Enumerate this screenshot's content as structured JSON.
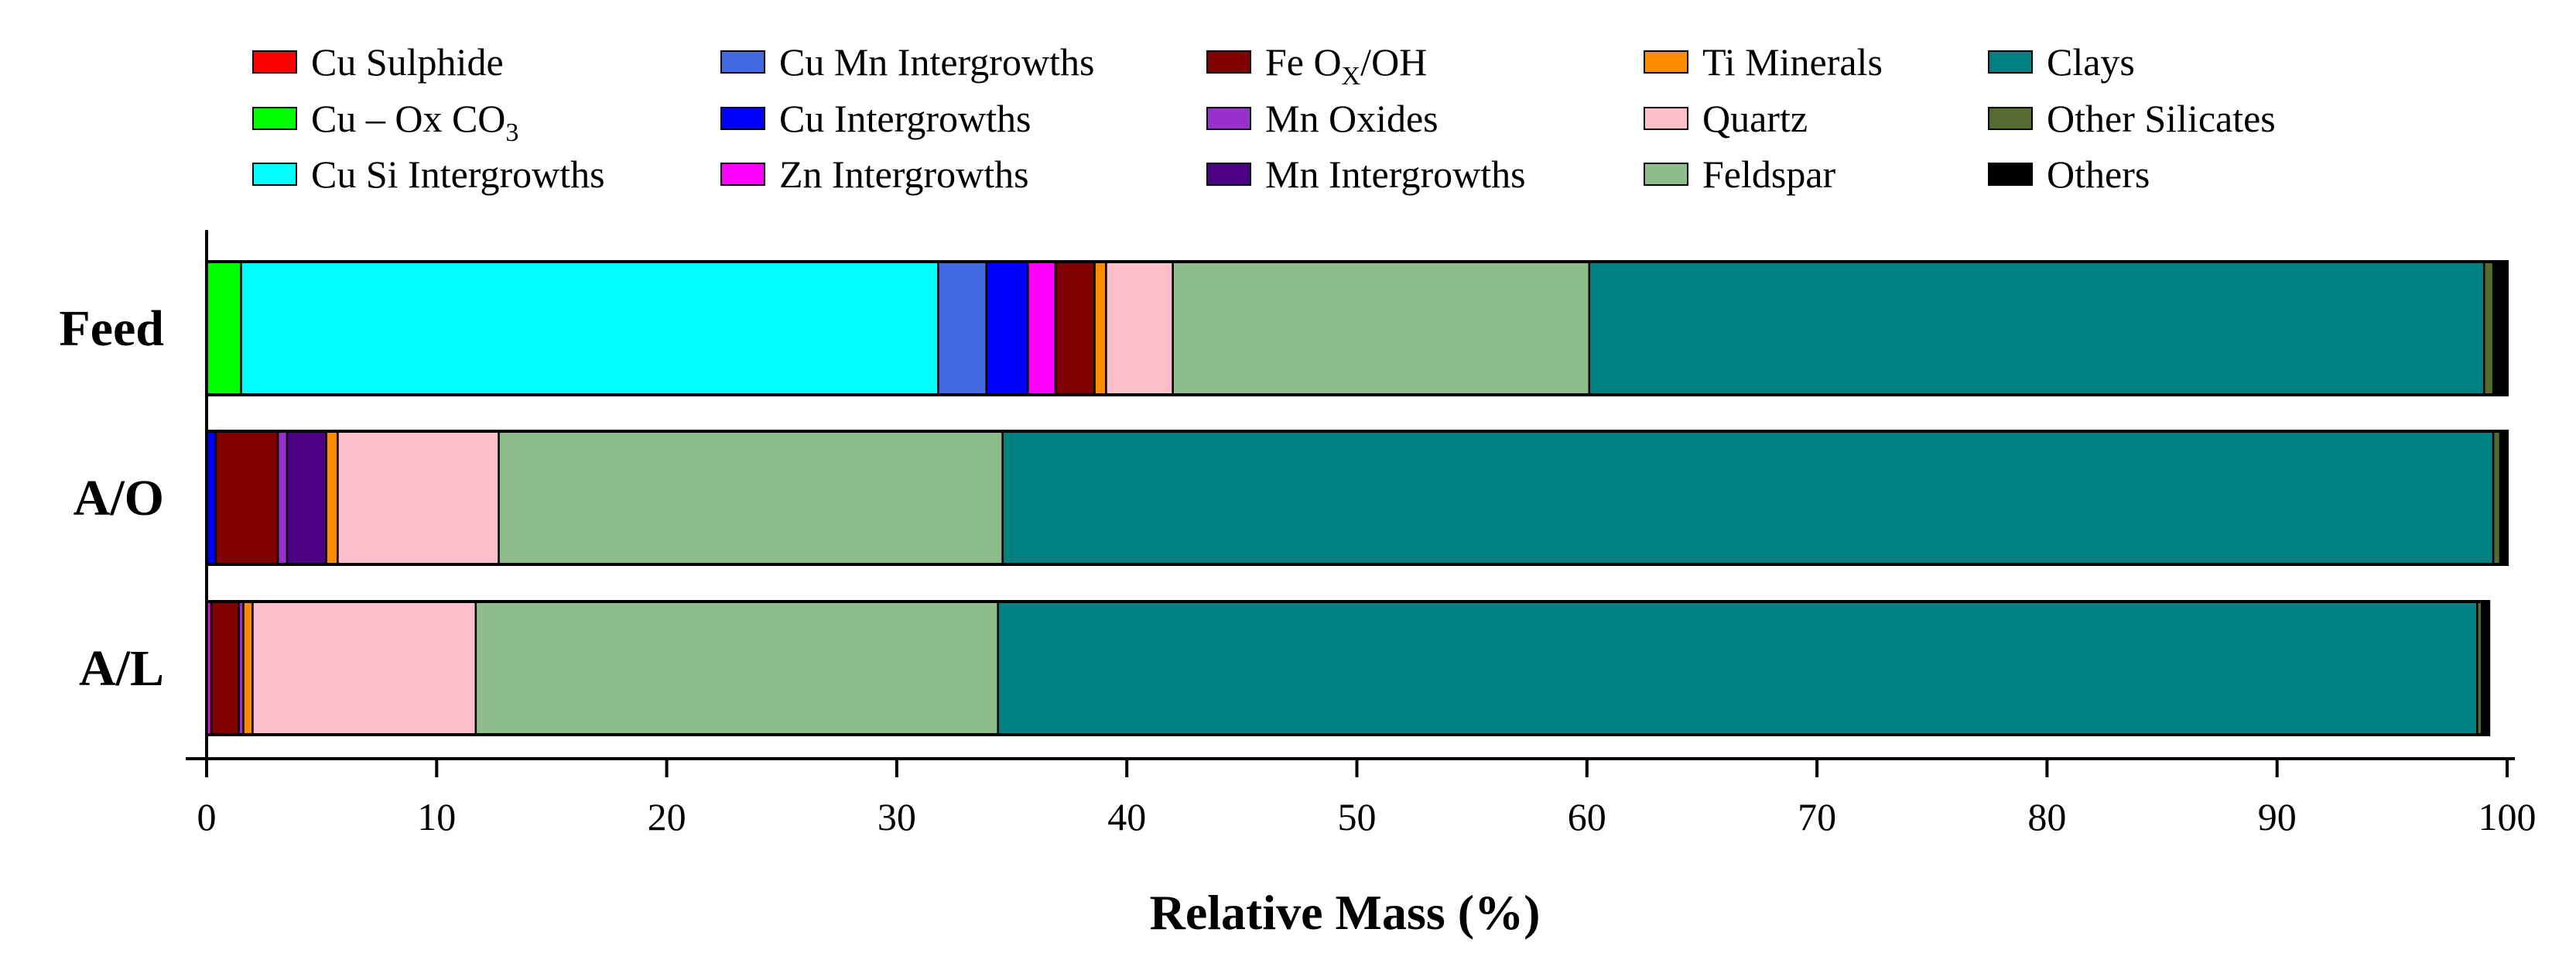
{
  "chart_data": {
    "type": "bar",
    "orientation": "horizontal",
    "stacked": true,
    "title": "",
    "xlabel": "Relative Mass (%)",
    "ylabel": "",
    "xlim": [
      0,
      100
    ],
    "xticks": [
      "0",
      "10",
      "20",
      "30",
      "40",
      "50",
      "60",
      "70",
      "80",
      "90",
      "100"
    ],
    "grid": false,
    "legend_position": "top",
    "categories": [
      "Feed",
      "A/O",
      "A/L"
    ],
    "series": [
      {
        "name": "Cu Sulphide",
        "label_main": "Cu Sulphide",
        "color": "#FF0000",
        "values": [
          0.0,
          0.0,
          0.0
        ]
      },
      {
        "name": "Cu – Ox CO3",
        "label_main": "Cu – Ox CO",
        "label_sub": "3",
        "color": "#00FF00",
        "values": [
          1.5,
          0.0,
          0.0
        ]
      },
      {
        "name": "Cu Si Intergrowths",
        "label_main": "Cu Si Intergrowths",
        "color": "#00FFFF",
        "values": [
          30.3,
          0.0,
          0.0
        ]
      },
      {
        "name": "Cu Mn Intergrowths",
        "label_main": "Cu Mn Intergrowths",
        "color": "#4169E1",
        "values": [
          2.1,
          0.0,
          0.0
        ]
      },
      {
        "name": "Cu Intergrowths",
        "label_main": "Cu Intergrowths",
        "color": "#0000FF",
        "values": [
          1.8,
          0.4,
          0.0
        ]
      },
      {
        "name": "Zn Intergrowths",
        "label_main": "Zn Intergrowths",
        "color": "#FF00FF",
        "values": [
          1.2,
          0.0,
          0.2
        ]
      },
      {
        "name": "Fe OX/OH",
        "label_main": "Fe O",
        "label_sub": "X",
        "label_tail": "/OH",
        "color": "#800000",
        "values": [
          1.7,
          2.7,
          1.2
        ]
      },
      {
        "name": "Mn Oxides",
        "label_main": "Mn Oxides",
        "color": "#9932CC",
        "values": [
          0.0,
          0.4,
          0.2
        ]
      },
      {
        "name": "Mn Intergrowths",
        "label_main": "Mn Intergrowths",
        "color": "#4B0082",
        "values": [
          0.0,
          1.7,
          0.0
        ]
      },
      {
        "name": "Ti Minerals",
        "label_main": "Ti Minerals",
        "color": "#FF8C00",
        "values": [
          0.5,
          0.5,
          0.4
        ]
      },
      {
        "name": "Quartz",
        "label_main": "Quartz",
        "color": "#FFC0CB",
        "values": [
          2.9,
          7.0,
          9.7
        ]
      },
      {
        "name": "Feldspar",
        "label_main": "Feldspar",
        "color": "#8FBC8B",
        "values": [
          18.1,
          21.9,
          22.7
        ]
      },
      {
        "name": "Clays",
        "label_main": "Clays",
        "color": "#008080",
        "values": [
          38.9,
          64.8,
          64.3
        ]
      },
      {
        "name": "Other Silicates",
        "label_main": "Other Silicates",
        "color": "#556B2F",
        "values": [
          0.4,
          0.3,
          0.2
        ]
      },
      {
        "name": "Others",
        "label_main": "Others",
        "color": "#000000",
        "values": [
          0.6,
          0.3,
          0.3
        ]
      }
    ],
    "extra_colors": [
      "#2E8B8B"
    ],
    "extra_values": [
      [
        0,
        0,
        0.9
      ]
    ]
  }
}
